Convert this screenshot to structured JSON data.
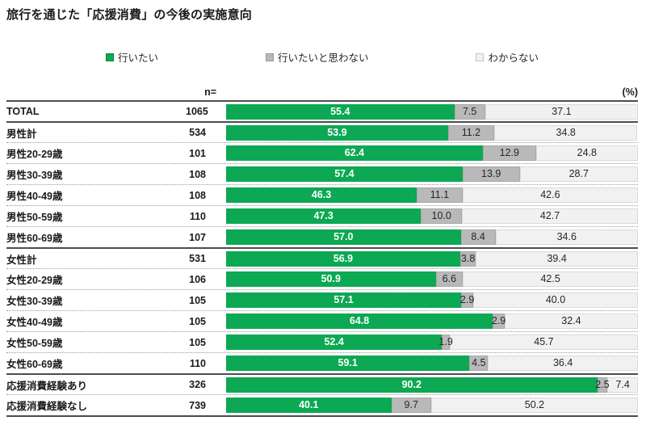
{
  "title": "旅行を通じた「応援消費」の今後の実施意向",
  "header": {
    "n_label": "n=",
    "pct_label": "(%)"
  },
  "legend": [
    {
      "label": "行いたい",
      "color": "#0ca853"
    },
    {
      "label": "行いたいと思わない",
      "color": "#b9b9b9"
    },
    {
      "label": "わからない",
      "color": "#f1f1f1"
    }
  ],
  "colors": {
    "want": "#0ca853",
    "not_want": "#b9b9b9",
    "unknown": "#f1f1f1"
  },
  "chart_data": {
    "type": "bar",
    "orientation": "horizontal",
    "stacked": true,
    "unit": "%",
    "xlim": [
      0,
      100
    ],
    "title": "旅行を通じた「応援消費」の今後の実施意向",
    "series_names": [
      "行いたい",
      "行いたいと思わない",
      "わからない"
    ],
    "categories": [
      "TOTAL",
      "男性計",
      "男性20-29歳",
      "男性30-39歳",
      "男性40-49歳",
      "男性50-59歳",
      "男性60-69歳",
      "女性計",
      "女性20-29歳",
      "女性30-39歳",
      "女性40-49歳",
      "女性50-59歳",
      "女性60-69歳",
      "応援消費経験あり",
      "応援消費経験なし"
    ],
    "rows": [
      {
        "label": "TOTAL",
        "n": 1065,
        "values": [
          55.4,
          7.5,
          37.1
        ],
        "divider": "solid"
      },
      {
        "label": "男性計",
        "n": 534,
        "values": [
          53.9,
          11.2,
          34.8
        ],
        "divider": "solid"
      },
      {
        "label": "男性20-29歳",
        "n": 101,
        "values": [
          62.4,
          12.9,
          24.8
        ],
        "divider": "dotted"
      },
      {
        "label": "男性30-39歳",
        "n": 108,
        "values": [
          57.4,
          13.9,
          28.7
        ],
        "divider": "dotted"
      },
      {
        "label": "男性40-49歳",
        "n": 108,
        "values": [
          46.3,
          11.1,
          42.6
        ],
        "divider": "dotted"
      },
      {
        "label": "男性50-59歳",
        "n": 110,
        "values": [
          47.3,
          10.0,
          42.7
        ],
        "divider": "dotted"
      },
      {
        "label": "男性60-69歳",
        "n": 107,
        "values": [
          57.0,
          8.4,
          34.6
        ],
        "divider": "dotted"
      },
      {
        "label": "女性計",
        "n": 531,
        "values": [
          56.9,
          3.8,
          39.4
        ],
        "divider": "solid"
      },
      {
        "label": "女性20-29歳",
        "n": 106,
        "values": [
          50.9,
          6.6,
          42.5
        ],
        "divider": "dotted"
      },
      {
        "label": "女性30-39歳",
        "n": 105,
        "values": [
          57.1,
          2.9,
          40.0
        ],
        "divider": "dotted"
      },
      {
        "label": "女性40-49歳",
        "n": 105,
        "values": [
          64.8,
          2.9,
          32.4
        ],
        "divider": "dotted"
      },
      {
        "label": "女性50-59歳",
        "n": 105,
        "values": [
          52.4,
          1.9,
          45.7
        ],
        "divider": "dotted"
      },
      {
        "label": "女性60-69歳",
        "n": 110,
        "values": [
          59.1,
          4.5,
          36.4
        ],
        "divider": "dotted"
      },
      {
        "label": "応援消費経験あり",
        "n": 326,
        "values": [
          90.2,
          2.5,
          7.4
        ],
        "divider": "solid"
      },
      {
        "label": "応援消費経験なし",
        "n": 739,
        "values": [
          40.1,
          9.7,
          50.2
        ],
        "divider": "dotted"
      }
    ]
  }
}
